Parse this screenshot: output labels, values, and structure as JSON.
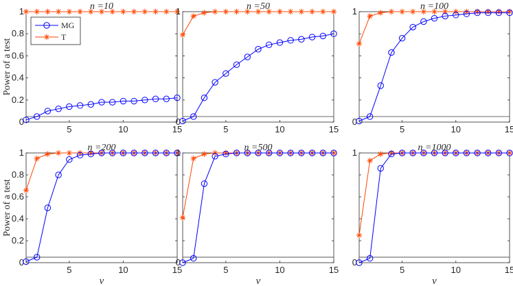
{
  "figure": {
    "ylabel": "Power of a test",
    "xlabel": "ν"
  },
  "chart_data": [
    {
      "type": "line",
      "title": "n =10",
      "xlim": [
        1,
        15
      ],
      "ylim": [
        0,
        1
      ],
      "xticks": [
        5,
        10,
        15
      ],
      "yticks": [
        0,
        0.2,
        0.4,
        0.6,
        0.8,
        1
      ],
      "ytick_labels": [
        "0",
        "0.2",
        "0.4",
        "0.6",
        "0.8",
        "1"
      ],
      "reference_line": 0.05,
      "show_ylabel": true,
      "show_xlabel": false,
      "legend": "top-left",
      "x": [
        1,
        2,
        3,
        4,
        5,
        6,
        7,
        8,
        9,
        10,
        11,
        12,
        13,
        14,
        15
      ],
      "series": [
        {
          "name": "MG",
          "color": "#0000ff",
          "marker": "circle",
          "values": [
            0.02,
            0.05,
            0.1,
            0.12,
            0.14,
            0.15,
            0.16,
            0.18,
            0.18,
            0.19,
            0.19,
            0.2,
            0.21,
            0.21,
            0.22
          ]
        },
        {
          "name": "T",
          "color": "#ff4500",
          "marker": "star",
          "values": [
            1,
            1,
            1,
            1,
            1,
            1,
            1,
            1,
            1,
            1,
            1,
            1,
            1,
            1,
            1
          ]
        }
      ]
    },
    {
      "type": "line",
      "title": "n =50",
      "xlim": [
        1,
        15
      ],
      "ylim": [
        0,
        1
      ],
      "xticks": [
        5,
        10,
        15
      ],
      "yticks": [
        0,
        0.2,
        0.4,
        0.6,
        0.8,
        1
      ],
      "ytick_labels": [
        "0",
        "",
        "",
        "",
        "",
        "1"
      ],
      "reference_line": 0.05,
      "show_ylabel": false,
      "show_xlabel": false,
      "x": [
        1,
        2,
        3,
        4,
        5,
        6,
        7,
        8,
        9,
        10,
        11,
        12,
        13,
        14,
        15
      ],
      "series": [
        {
          "color": "#0000ff",
          "marker": "circle",
          "values": [
            0.01,
            0.05,
            0.22,
            0.36,
            0.44,
            0.52,
            0.59,
            0.66,
            0.7,
            0.72,
            0.74,
            0.75,
            0.77,
            0.78,
            0.8
          ]
        },
        {
          "color": "#ff4500",
          "marker": "star",
          "values": [
            0.79,
            0.96,
            0.99,
            1,
            1,
            1,
            1,
            1,
            1,
            1,
            1,
            1,
            1,
            1,
            1
          ]
        }
      ]
    },
    {
      "type": "line",
      "title": "n =100",
      "xlim": [
        1,
        15
      ],
      "ylim": [
        0,
        1
      ],
      "xticks": [
        5,
        10,
        15
      ],
      "yticks": [
        0,
        0.2,
        0.4,
        0.6,
        0.8,
        1
      ],
      "ytick_labels": [
        "0",
        "",
        "",
        "",
        "",
        "1"
      ],
      "reference_line": 0.05,
      "show_ylabel": false,
      "show_xlabel": false,
      "x": [
        1,
        2,
        3,
        4,
        5,
        6,
        7,
        8,
        9,
        10,
        11,
        12,
        13,
        14,
        15
      ],
      "series": [
        {
          "color": "#0000ff",
          "marker": "circle",
          "values": [
            0.01,
            0.05,
            0.33,
            0.63,
            0.76,
            0.86,
            0.91,
            0.94,
            0.96,
            0.97,
            0.98,
            0.99,
            0.99,
            0.99,
            0.99
          ]
        },
        {
          "color": "#ff4500",
          "marker": "star",
          "values": [
            0.71,
            0.96,
            0.99,
            1,
            1,
            1,
            1,
            1,
            1,
            1,
            1,
            1,
            1,
            1,
            1
          ]
        }
      ]
    },
    {
      "type": "line",
      "title": "n =200",
      "xlim": [
        1,
        15
      ],
      "ylim": [
        0,
        1
      ],
      "xticks": [
        5,
        10,
        15
      ],
      "yticks": [
        0,
        0.2,
        0.4,
        0.6,
        0.8,
        1
      ],
      "ytick_labels": [
        "0",
        "0.2",
        "0.4",
        "0.6",
        "0.8",
        "1"
      ],
      "reference_line": 0.05,
      "show_ylabel": true,
      "show_xlabel": true,
      "x": [
        1,
        2,
        3,
        4,
        5,
        6,
        7,
        8,
        9,
        10,
        11,
        12,
        13,
        14,
        15
      ],
      "series": [
        {
          "color": "#0000ff",
          "marker": "circle",
          "values": [
            0.01,
            0.05,
            0.5,
            0.8,
            0.94,
            0.98,
            0.99,
            1,
            1,
            1,
            1,
            1,
            1,
            1,
            1
          ]
        },
        {
          "color": "#ff4500",
          "marker": "star",
          "values": [
            0.66,
            0.95,
            0.99,
            1,
            1,
            1,
            1,
            1,
            1,
            1,
            1,
            1,
            1,
            1,
            1
          ]
        }
      ]
    },
    {
      "type": "line",
      "title": "n =500",
      "xlim": [
        1,
        15
      ],
      "ylim": [
        0,
        1
      ],
      "xticks": [
        5,
        10,
        15
      ],
      "yticks": [
        0,
        0.2,
        0.4,
        0.6,
        0.8,
        1
      ],
      "ytick_labels": [
        "0",
        "",
        "",
        "",
        "",
        "1"
      ],
      "reference_line": 0.05,
      "show_ylabel": false,
      "show_xlabel": true,
      "x": [
        1,
        2,
        3,
        4,
        5,
        6,
        7,
        8,
        9,
        10,
        11,
        12,
        13,
        14,
        15
      ],
      "series": [
        {
          "color": "#0000ff",
          "marker": "circle",
          "values": [
            0.0,
            0.04,
            0.72,
            0.97,
            0.99,
            1,
            1,
            1,
            1,
            1,
            1,
            1,
            1,
            1,
            1
          ]
        },
        {
          "color": "#ff4500",
          "marker": "star",
          "values": [
            0.41,
            0.95,
            0.99,
            1,
            1,
            1,
            1,
            1,
            1,
            1,
            1,
            1,
            1,
            1,
            1
          ]
        }
      ]
    },
    {
      "type": "line",
      "title": "n =1000",
      "xlim": [
        1,
        15
      ],
      "ylim": [
        0,
        1
      ],
      "xticks": [
        5,
        10,
        15
      ],
      "yticks": [
        0,
        0.2,
        0.4,
        0.6,
        0.8,
        1
      ],
      "ytick_labels": [
        "0",
        "",
        "",
        "",
        "",
        "1"
      ],
      "reference_line": 0.05,
      "show_ylabel": false,
      "show_xlabel": true,
      "x": [
        1,
        2,
        3,
        4,
        5,
        6,
        7,
        8,
        9,
        10,
        11,
        12,
        13,
        14,
        15
      ],
      "series": [
        {
          "color": "#0000ff",
          "marker": "circle",
          "values": [
            0.0,
            0.04,
            0.86,
            0.99,
            1,
            1,
            1,
            1,
            1,
            1,
            1,
            1,
            1,
            1,
            1
          ]
        },
        {
          "color": "#ff4500",
          "marker": "star",
          "values": [
            0.25,
            0.93,
            0.99,
            1,
            1,
            1,
            1,
            1,
            1,
            1,
            1,
            1,
            1,
            1,
            1
          ]
        }
      ]
    }
  ]
}
